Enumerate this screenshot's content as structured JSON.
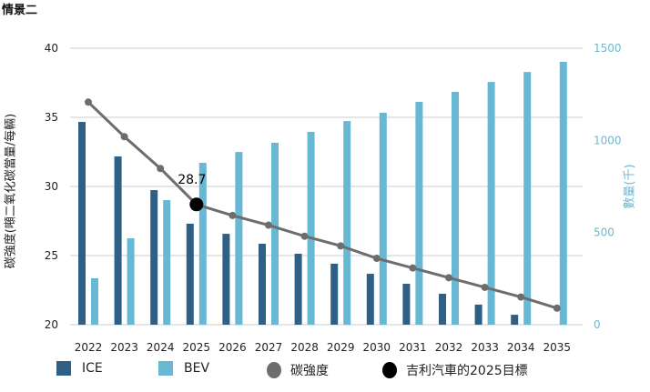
{
  "title": "情景二",
  "chart_data": {
    "type": "bar+line",
    "categories": [
      "2022",
      "2023",
      "2024",
      "2025",
      "2026",
      "2027",
      "2028",
      "2029",
      "2030",
      "2031",
      "2032",
      "2033",
      "2034",
      "2035"
    ],
    "series": [
      {
        "name": "ICE",
        "type": "bar",
        "axis": "right",
        "color": "#2e5f85",
        "values": [
          1100,
          913,
          730,
          548,
          493,
          439,
          385,
          331,
          276,
          222,
          168,
          109,
          54,
          0
        ]
      },
      {
        "name": "BEV",
        "type": "bar",
        "axis": "right",
        "color": "#68b8d3",
        "values": [
          252,
          469,
          676,
          878,
          937,
          987,
          1046,
          1105,
          1150,
          1209,
          1263,
          1317,
          1371,
          1426
        ]
      },
      {
        "name": "碳強度",
        "type": "line",
        "axis": "left",
        "color": "#6d6d6d",
        "values": [
          36.1,
          33.6,
          31.3,
          28.7,
          27.9,
          27.2,
          26.4,
          25.7,
          24.8,
          24.1,
          23.4,
          22.7,
          22.0,
          21.2
        ]
      }
    ],
    "target": {
      "name": "吉利汽車的2025目標",
      "category": "2025",
      "value": 28.7,
      "label": "28.7",
      "color": "#000000"
    },
    "ylabel": "碳強度(噸二氧化碳當量/每輛)",
    "ylim": [
      20,
      40
    ],
    "yticks": [
      "20",
      "25",
      "30",
      "35",
      "40"
    ],
    "y2label": "數量(千)",
    "y2lim": [
      0,
      1500
    ],
    "y2ticks": [
      "0",
      "500",
      "1000",
      "1500"
    ],
    "y2color": "#6bb8d2",
    "grid": true,
    "legend_position": "bottom"
  }
}
